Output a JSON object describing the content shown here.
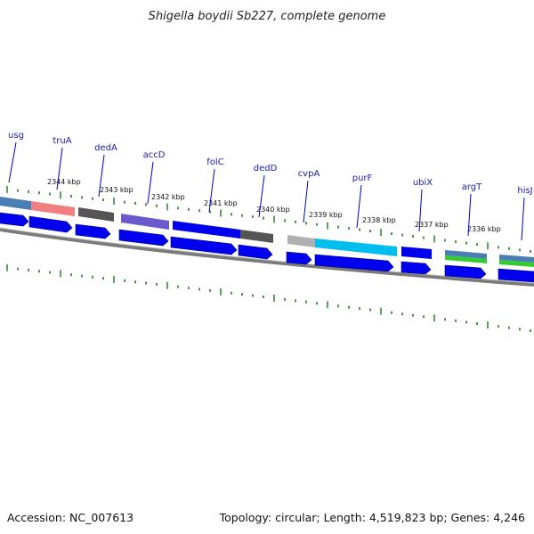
{
  "title": "Shigella boydii Sb227, complete genome",
  "accession": "Accession: NC_007613",
  "summary": "Topology: circular; Length: 4,519,823 bp; Genes: 4,246",
  "colors": {
    "cds_blue": "#0000ee",
    "feature_line": "#0000cc",
    "tick_green": "#1a7a1a",
    "backbone": "#7a7a7a"
  },
  "scale_labels": [
    "2344 kbp",
    "2343 kbp",
    "2342 kbp",
    "2341 kbp",
    "2340 kbp",
    "2339 kbp",
    "2338 kbp",
    "2337 kbp",
    "2336 kbp"
  ],
  "genes": [
    "usg",
    "truA",
    "dedA",
    "accD",
    "folC",
    "dedD",
    "cvpA",
    "purF",
    "ubiX",
    "argT",
    "hisJ"
  ]
}
